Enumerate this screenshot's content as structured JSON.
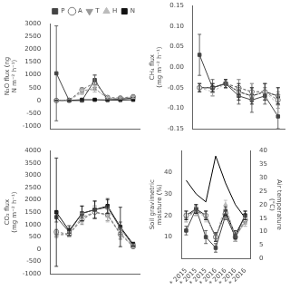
{
  "chart_data": [
    {
      "type": "line",
      "categories": [
        null,
        null,
        null,
        null,
        null,
        null,
        null
      ],
      "ylabel": "N₂O flux (ng N m⁻² h⁻¹)",
      "ylim": [
        -1100,
        3000
      ],
      "yticks": [
        -1000,
        -500,
        0,
        500,
        1000,
        1500,
        2000,
        2500,
        3000
      ],
      "grid": false,
      "legend": "upper right",
      "series": [
        {
          "name": "P",
          "color": "#444444",
          "marker": "square",
          "line_style": "solid",
          "values": [
            1060,
            0,
            0,
            800,
            30,
            50,
            100
          ],
          "errors": [
            1850,
            0,
            0,
            200,
            30,
            30,
            50
          ]
        },
        {
          "name": "A",
          "color": "#777777",
          "marker": "circle-open",
          "line_style": "dashed",
          "values": [
            0,
            10,
            420,
            700,
            120,
            100,
            150
          ],
          "errors": [
            0,
            10,
            80,
            280,
            50,
            50,
            60
          ]
        },
        {
          "name": "T",
          "color": "#999999",
          "marker": "triangle-down",
          "line_style": "dashed",
          "values": [
            0,
            15,
            370,
            480,
            80,
            70,
            110
          ],
          "errors": [
            0,
            10,
            60,
            150,
            40,
            30,
            50
          ]
        },
        {
          "name": "H",
          "color": "#bbbbbb",
          "marker": "triangle-up",
          "line_style": "dashed",
          "values": [
            0,
            20,
            300,
            450,
            90,
            80,
            120
          ],
          "errors": [
            0,
            10,
            70,
            120,
            30,
            30,
            40
          ]
        },
        {
          "name": "N",
          "color": "#111111",
          "marker": "square",
          "line_style": "solid",
          "values": [
            0,
            5,
            30,
            30,
            20,
            20,
            30
          ],
          "errors": [
            0,
            5,
            10,
            10,
            10,
            10,
            10
          ]
        }
      ]
    },
    {
      "type": "line",
      "categories": [
        null,
        null,
        null,
        null,
        null,
        null,
        null
      ],
      "ylabel": "CH₄ flux (mg m⁻² h⁻¹)",
      "ylim": [
        -0.15,
        0.15
      ],
      "yticks": [
        -0.15,
        {
          "value": -0.1,
          "label": "-0.10"
        },
        -0.05,
        {
          "value": 0,
          "label": "0.00"
        },
        0.05,
        {
          "value": 0.1,
          "label": "0.10"
        },
        0.15
      ],
      "grid": false,
      "series": [
        {
          "name": "P",
          "color": "#444444",
          "marker": "square",
          "line_style": "solid",
          "values": [
            0.03,
            -0.05,
            -0.04,
            -0.07,
            -0.08,
            -0.07,
            -0.12
          ],
          "errors": [
            0.05,
            0.02,
            0.01,
            0.02,
            0.03,
            0.02,
            0.03
          ]
        },
        {
          "name": "A",
          "color": "#777777",
          "marker": "circle-open",
          "line_style": "dashed",
          "values": [
            -0.05,
            -0.05,
            -0.04,
            -0.05,
            -0.06,
            -0.06,
            -0.08
          ],
          "errors": [
            0.01,
            0.01,
            0.01,
            0.02,
            0.02,
            0.02,
            0.02
          ]
        },
        {
          "name": "T",
          "color": "#999999",
          "marker": "triangle-down",
          "line_style": "dashed",
          "values": [
            -0.05,
            -0.05,
            -0.04,
            -0.05,
            -0.06,
            -0.06,
            -0.07
          ],
          "errors": [
            0.01,
            0.01,
            0.01,
            0.02,
            0.02,
            0.02,
            0.02
          ]
        },
        {
          "name": "H",
          "color": "#bbbbbb",
          "marker": "triangle-up",
          "line_style": "dashed",
          "values": [
            -0.05,
            -0.06,
            -0.04,
            -0.06,
            -0.07,
            -0.06,
            -0.09
          ],
          "errors": [
            0.01,
            0.01,
            0.01,
            0.02,
            0.02,
            0.02,
            0.02
          ]
        },
        {
          "name": "N",
          "color": "#111111",
          "marker": "square",
          "line_style": "solid",
          "values": [
            -0.05,
            -0.05,
            -0.04,
            -0.06,
            -0.07,
            -0.06,
            -0.07
          ],
          "errors": [
            0.01,
            0.01,
            0.01,
            0.02,
            0.02,
            0.02,
            0.02
          ]
        }
      ]
    },
    {
      "type": "line",
      "categories": [
        null,
        null,
        null,
        null,
        null,
        null,
        null
      ],
      "ylabel": "CO₂ flux (mg m⁻² h⁻¹)",
      "ylim": [
        -1000,
        4000
      ],
      "yticks": [
        -1000,
        -500,
        0,
        500,
        1000,
        1500,
        2000,
        2500,
        3000,
        3500,
        4000
      ],
      "grid": false,
      "series": [
        {
          "name": "P",
          "color": "#444444",
          "marker": "square",
          "line_style": "solid",
          "values": [
            1300,
            700,
            1450,
            1600,
            1700,
            850,
            150
          ],
          "errors": [
            200,
            150,
            300,
            350,
            300,
            250,
            80
          ]
        },
        {
          "name": "A",
          "color": "#777777",
          "marker": "circle-open",
          "line_style": "dashed",
          "values": [
            700,
            600,
            1200,
            1500,
            1400,
            600,
            100
          ],
          "errors": [
            100,
            100,
            200,
            250,
            250,
            200,
            60
          ]
        },
        {
          "name": "T",
          "color": "#999999",
          "marker": "triangle-down",
          "line_style": "dashed",
          "values": [
            600,
            600,
            1300,
            1500,
            1400,
            650,
            130
          ],
          "errors": [
            100,
            100,
            200,
            250,
            250,
            200,
            60
          ]
        },
        {
          "name": "H",
          "color": "#bbbbbb",
          "marker": "triangle-up",
          "line_style": "dashed",
          "values": [
            550,
            600,
            1250,
            1500,
            1350,
            600,
            120
          ],
          "errors": [
            100,
            100,
            200,
            250,
            250,
            200,
            60
          ]
        },
        {
          "name": "N",
          "color": "#111111",
          "marker": "square",
          "line_style": "solid",
          "values": [
            1500,
            750,
            1450,
            1600,
            1750,
            900,
            200
          ],
          "errors": [
            2200,
            200,
            300,
            350,
            300,
            800,
            80
          ]
        }
      ]
    },
    {
      "type": "line",
      "categories": [
        "* 2015",
        "* 2015",
        "* 2015",
        "* 2016",
        "* 2016",
        "* 2016",
        "* 2016"
      ],
      "ylabel": "Soil gravimetric moisture (%)",
      "ylim": [
        0,
        50
      ],
      "yticks": [
        10,
        20,
        30,
        40
      ],
      "y2label": "Air temperature (°C)",
      "y2lim": [
        0,
        40
      ],
      "y2ticks": [
        0,
        5,
        10,
        15,
        20,
        25,
        30,
        35,
        40
      ],
      "grid": false,
      "series": [
        {
          "name": "P",
          "color": "#444444",
          "marker": "square",
          "line_style": "solid",
          "values": [
            13,
            23,
            10,
            5,
            20,
            10,
            20
          ],
          "errors": [
            2,
            2,
            3,
            2,
            2,
            2,
            2
          ]
        },
        {
          "name": "A",
          "color": "#777777",
          "marker": "circle-open",
          "line_style": "dashed",
          "values": [
            20,
            22,
            20,
            10,
            21,
            10,
            18
          ],
          "errors": [
            2,
            2,
            2,
            2,
            2,
            2,
            2
          ]
        },
        {
          "name": "T",
          "color": "#999999",
          "marker": "triangle-down",
          "line_style": "dashed",
          "values": [
            19,
            22,
            20,
            10,
            21,
            10,
            17
          ],
          "errors": [
            2,
            2,
            2,
            2,
            2,
            2,
            2
          ]
        },
        {
          "name": "H",
          "color": "#bbbbbb",
          "marker": "triangle-up",
          "line_style": "dashed",
          "values": [
            19,
            22,
            19,
            10,
            25,
            10,
            17
          ],
          "errors": [
            2,
            2,
            2,
            2,
            2,
            2,
            2
          ]
        },
        {
          "name": "N",
          "color": "#111111",
          "marker": "square",
          "line_style": "solid",
          "values": [
            20,
            23,
            20,
            10,
            22,
            11,
            20
          ],
          "errors": [
            2,
            2,
            2,
            2,
            2,
            2,
            2
          ]
        },
        {
          "color": "#000000",
          "marker": "none",
          "line_style": "solid",
          "axis": "y2",
          "values": [
            29,
            24,
            21,
            38,
            28,
            20,
            15
          ]
        }
      ]
    }
  ]
}
